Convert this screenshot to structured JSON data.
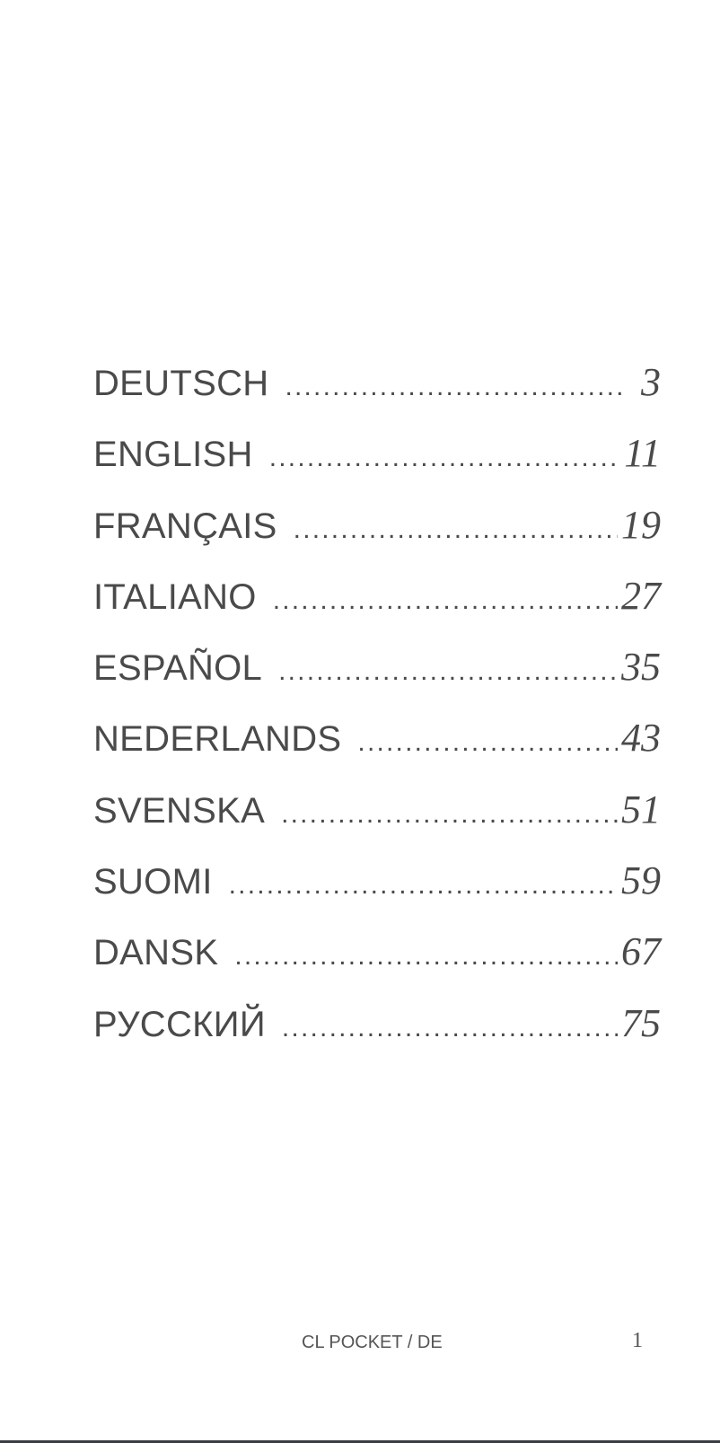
{
  "toc": [
    {
      "label": "DEUTSCH",
      "page": "3"
    },
    {
      "label": "ENGLISH",
      "page": "11"
    },
    {
      "label": "FRANÇAIS",
      "page": "19"
    },
    {
      "label": "ITALIANO",
      "page": "27"
    },
    {
      "label": "ESPAÑOL",
      "page": "35"
    },
    {
      "label": "NEDERLANDS",
      "page": "43"
    },
    {
      "label": "SVENSKA",
      "page": "51"
    },
    {
      "label": "SUOMI",
      "page": "59"
    },
    {
      "label": "DANSK",
      "page": "67"
    },
    {
      "label": "РУССКИЙ",
      "page": "75"
    }
  ],
  "footer": {
    "title": "CL POCKET / DE",
    "page_number": "1"
  }
}
